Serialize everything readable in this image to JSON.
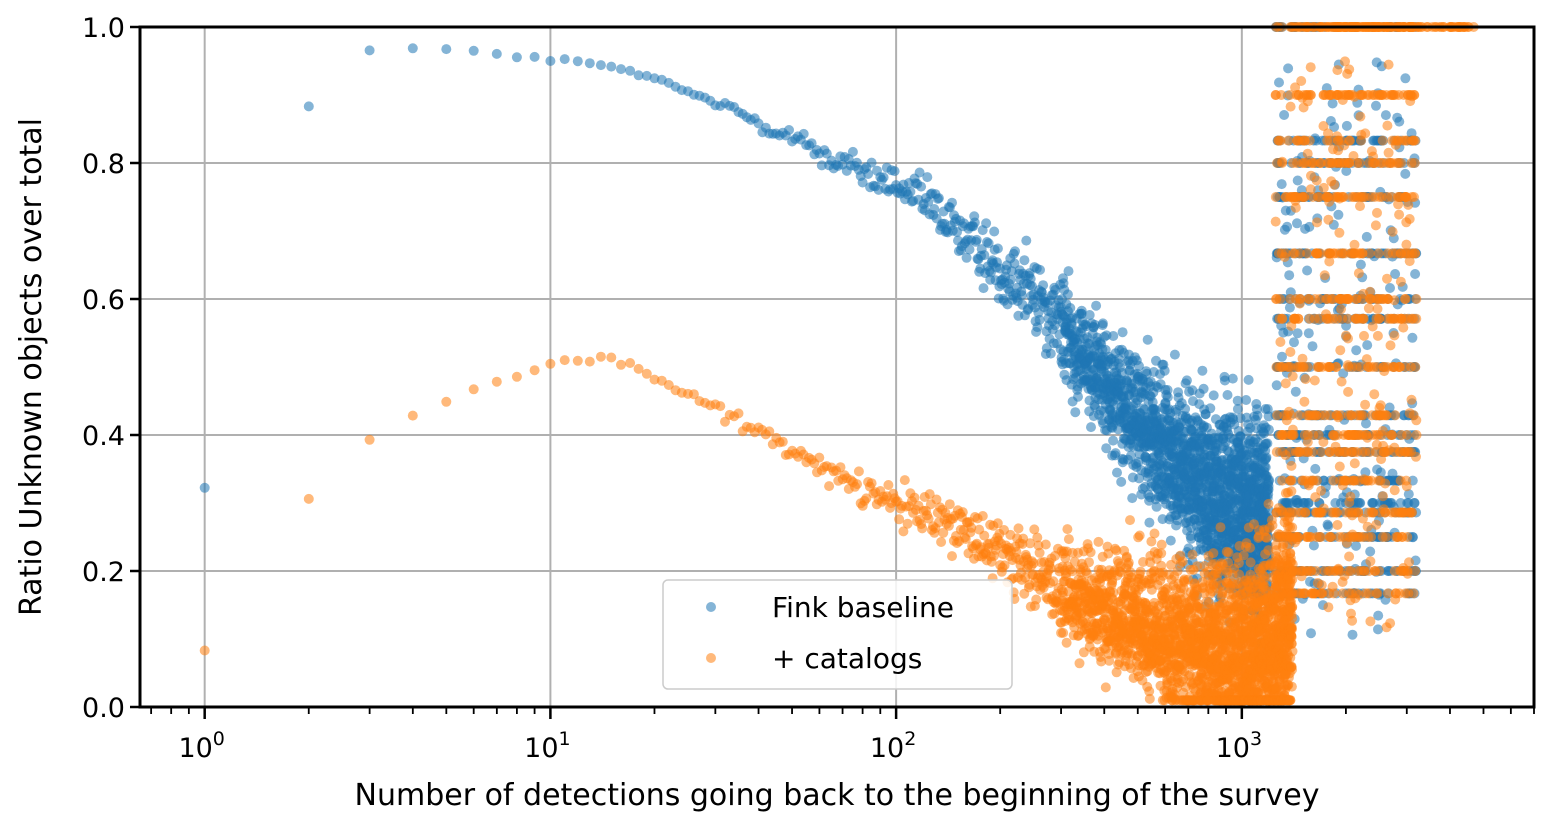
{
  "chart_data": {
    "type": "scatter",
    "title": "",
    "xlabel": "Number of detections going back to the beginning of the survey",
    "ylabel": "Ratio Unknown objects over total",
    "xscale": "log",
    "xlim": [
      0.65,
      7000
    ],
    "ylim": [
      0.0,
      1.0
    ],
    "grid": true,
    "legend_position": "lower center",
    "x_ticks": [
      {
        "value": 1,
        "base": "10",
        "exp": "0"
      },
      {
        "value": 10,
        "base": "10",
        "exp": "1"
      },
      {
        "value": 100,
        "base": "10",
        "exp": "2"
      },
      {
        "value": 1000,
        "base": "10",
        "exp": "3"
      }
    ],
    "y_ticks": [
      "0.0",
      "0.2",
      "0.4",
      "0.6",
      "0.8",
      "1.0"
    ],
    "series": [
      {
        "name": "Fink baseline",
        "color": "#1f77b4",
        "trend": [
          [
            1,
            0.325
          ],
          [
            2,
            0.883
          ],
          [
            3,
            0.965
          ],
          [
            4,
            0.968
          ],
          [
            5,
            0.965
          ],
          [
            6,
            0.963
          ],
          [
            7,
            0.962
          ],
          [
            8,
            0.958
          ],
          [
            9,
            0.955
          ],
          [
            10,
            0.952
          ],
          [
            11,
            0.95
          ],
          [
            12,
            0.948
          ],
          [
            13,
            0.946
          ],
          [
            14,
            0.944
          ],
          [
            15,
            0.94
          ],
          [
            17,
            0.935
          ],
          [
            20,
            0.923
          ],
          [
            25,
            0.905
          ],
          [
            30,
            0.888
          ],
          [
            40,
            0.862
          ],
          [
            50,
            0.838
          ],
          [
            60,
            0.816
          ],
          [
            70,
            0.798
          ],
          [
            80,
            0.786
          ],
          [
            100,
            0.765
          ],
          [
            120,
            0.745
          ],
          [
            150,
            0.703
          ],
          [
            200,
            0.648
          ],
          [
            250,
            0.61
          ],
          [
            300,
            0.56
          ],
          [
            350,
            0.515
          ],
          [
            400,
            0.48
          ],
          [
            500,
            0.42
          ],
          [
            600,
            0.375
          ],
          [
            700,
            0.345
          ],
          [
            800,
            0.318
          ],
          [
            900,
            0.298
          ],
          [
            1000,
            0.29
          ],
          [
            1100,
            0.285
          ],
          [
            1200,
            0.285
          ]
        ],
        "late_levels": [
          1.0,
          0.833,
          0.8,
          0.75,
          0.667,
          0.6,
          0.571,
          0.5,
          0.429,
          0.4,
          0.375,
          0.333,
          0.3,
          0.286,
          0.25,
          0.2,
          0.167
        ]
      },
      {
        "name": "+ catalogs",
        "color": "#ff7f0e",
        "trend": [
          [
            1,
            0.085
          ],
          [
            2,
            0.307
          ],
          [
            3,
            0.397
          ],
          [
            4,
            0.431
          ],
          [
            5,
            0.45
          ],
          [
            6,
            0.466
          ],
          [
            7,
            0.478
          ],
          [
            8,
            0.488
          ],
          [
            9,
            0.497
          ],
          [
            10,
            0.504
          ],
          [
            11,
            0.51
          ],
          [
            12,
            0.511
          ],
          [
            13,
            0.512
          ],
          [
            14,
            0.513
          ],
          [
            15,
            0.51
          ],
          [
            17,
            0.505
          ],
          [
            20,
            0.484
          ],
          [
            25,
            0.46
          ],
          [
            30,
            0.44
          ],
          [
            40,
            0.405
          ],
          [
            50,
            0.375
          ],
          [
            60,
            0.352
          ],
          [
            70,
            0.335
          ],
          [
            80,
            0.318
          ],
          [
            100,
            0.298
          ],
          [
            120,
            0.28
          ],
          [
            150,
            0.258
          ],
          [
            200,
            0.228
          ],
          [
            250,
            0.2
          ],
          [
            300,
            0.178
          ],
          [
            400,
            0.148
          ],
          [
            500,
            0.125
          ],
          [
            600,
            0.108
          ],
          [
            700,
            0.092
          ],
          [
            800,
            0.082
          ],
          [
            900,
            0.075
          ],
          [
            1000,
            0.072
          ],
          [
            1100,
            0.078
          ],
          [
            1200,
            0.09
          ],
          [
            1300,
            0.105
          ],
          [
            1400,
            0.15
          ]
        ],
        "late_levels": [
          1.0,
          0.9,
          0.833,
          0.8,
          0.75,
          0.667,
          0.6,
          0.571,
          0.5,
          0.429,
          0.4,
          0.375,
          0.333,
          0.286,
          0.25,
          0.2,
          0.167
        ]
      }
    ]
  }
}
